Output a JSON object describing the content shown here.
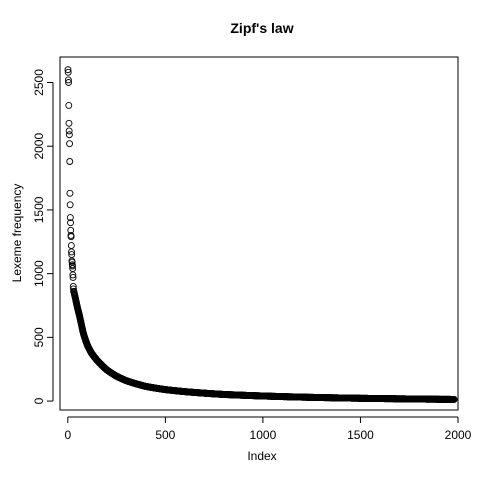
{
  "chart_data": {
    "type": "scatter",
    "title": "Zipf's law",
    "xlabel": "Index",
    "ylabel": "Lexeme frequency",
    "xlim": [
      -40,
      2000
    ],
    "ylim": [
      -70,
      2700
    ],
    "x_ticks": [
      0,
      500,
      1000,
      1500,
      2000
    ],
    "y_ticks": [
      0,
      500,
      1000,
      1500,
      2000,
      2500
    ],
    "marker": "open-circle",
    "grid": false,
    "legend": "none",
    "n_points": 1980,
    "head_values": [
      2600,
      2580,
      2520,
      2500,
      2320,
      2180,
      2120,
      2090,
      2020,
      1880,
      1630,
      1540,
      1440,
      1400,
      1340,
      1300,
      1290,
      1220,
      1170,
      1150,
      1100,
      1090,
      1070,
      1060,
      1040,
      990,
      970,
      900,
      880,
      860
    ],
    "curve_anchors": [
      [
        31,
        860
      ],
      [
        40,
        800
      ],
      [
        50,
        730
      ],
      [
        60,
        670
      ],
      [
        70,
        600
      ],
      [
        80,
        530
      ],
      [
        100,
        440
      ],
      [
        120,
        380
      ],
      [
        150,
        320
      ],
      [
        200,
        245
      ],
      [
        250,
        195
      ],
      [
        300,
        160
      ],
      [
        400,
        115
      ],
      [
        500,
        90
      ],
      [
        600,
        74
      ],
      [
        700,
        62
      ],
      [
        800,
        52
      ],
      [
        1000,
        40
      ],
      [
        1200,
        31
      ],
      [
        1500,
        22
      ],
      [
        1800,
        16
      ],
      [
        1980,
        13
      ]
    ]
  }
}
